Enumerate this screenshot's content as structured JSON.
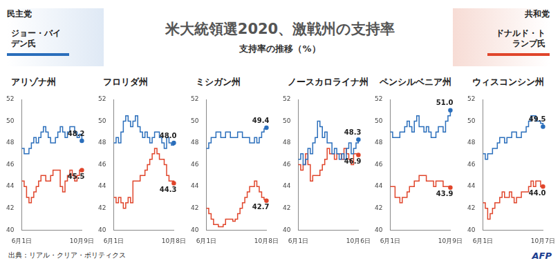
{
  "title": "米大統領選2020、激戦州の支持率",
  "subtitle": "支持率の推移（%）",
  "candidates": [
    {
      "party": "民主党",
      "name": "ジョー・バイデン氏",
      "color": "#2a6ebb"
    },
    {
      "party": "共和党",
      "name": "ドナルド・トランプ氏",
      "color": "#e0452b"
    }
  ],
  "source": "出典：リアル・クリア・ポリティクス",
  "credit": "AFP",
  "chart_data": [
    {
      "type": "line",
      "title": "アリゾナ州",
      "ylim": [
        40,
        52
      ],
      "yticks": [
        40,
        42,
        44,
        46,
        48,
        50,
        52
      ],
      "grid": false,
      "line_style": "stepped",
      "categories": [
        "6月1日",
        null,
        null,
        null,
        null,
        null,
        null,
        null,
        null,
        null,
        null,
        null,
        null,
        null,
        null,
        null,
        null,
        null,
        null,
        null,
        null,
        null,
        null,
        null,
        null,
        "10月9日"
      ],
      "series": [
        {
          "name": "ジョー・バイデン氏",
          "color": "#2a6ebb",
          "values": [
            47.5,
            47,
            47,
            47.5,
            48,
            48.5,
            48,
            48.5,
            49,
            49.5,
            49,
            48.5,
            48,
            48,
            48.5,
            49,
            49.5,
            49,
            48.5,
            49,
            49.5,
            49.5,
            49,
            48.5,
            48.8,
            48.2
          ],
          "value_labels": [
            null,
            null,
            null,
            null,
            null,
            null,
            null,
            null,
            null,
            null,
            null,
            null,
            null,
            null,
            null,
            null,
            null,
            null,
            null,
            null,
            null,
            null,
            null,
            null,
            null,
            "48.2"
          ]
        },
        {
          "name": "ドナルド・トランプ氏",
          "color": "#e0452b",
          "values": [
            44.5,
            44,
            43,
            42.5,
            43,
            43.5,
            44,
            44.5,
            45,
            45,
            44.5,
            44.5,
            45,
            45.5,
            45.5,
            45.5,
            44,
            43.5,
            44.5,
            45,
            45.5,
            45,
            44.5,
            45,
            45.5,
            45.5
          ],
          "value_labels": [
            null,
            null,
            null,
            null,
            null,
            null,
            null,
            null,
            null,
            null,
            null,
            null,
            null,
            null,
            null,
            null,
            null,
            null,
            null,
            null,
            null,
            null,
            null,
            null,
            null,
            "45.5"
          ]
        }
      ]
    },
    {
      "type": "line",
      "title": "フロリダ州",
      "ylim": [
        40,
        52
      ],
      "yticks": [
        40,
        42,
        44,
        46,
        48,
        50,
        52
      ],
      "grid": false,
      "line_style": "stepped",
      "categories": [
        "6月1日",
        null,
        null,
        null,
        null,
        null,
        null,
        null,
        null,
        null,
        null,
        null,
        null,
        null,
        null,
        null,
        null,
        null,
        null,
        null,
        null,
        null,
        null,
        null,
        null,
        "10月8日"
      ],
      "series": [
        {
          "name": "ジョー・バイデン氏",
          "color": "#2a6ebb",
          "values": [
            48,
            48.5,
            48,
            49,
            50,
            50.5,
            50,
            49.5,
            50,
            50.5,
            49.5,
            49,
            48.5,
            49,
            48.5,
            48,
            48.5,
            49,
            49,
            48.5,
            48,
            47.5,
            48.5,
            48,
            47.8,
            48.0
          ],
          "value_labels": [
            null,
            null,
            null,
            null,
            null,
            null,
            null,
            null,
            null,
            null,
            null,
            null,
            null,
            null,
            null,
            null,
            null,
            null,
            null,
            null,
            null,
            null,
            null,
            null,
            null,
            "48.0"
          ]
        },
        {
          "name": "ドナルド・トランプ氏",
          "color": "#e0452b",
          "values": [
            43,
            42.5,
            43,
            42.5,
            42,
            42.5,
            43,
            42.5,
            44.5,
            44.5,
            44.5,
            45,
            45,
            45.5,
            46,
            46.5,
            47,
            47.5,
            47,
            46.5,
            46.5,
            46,
            45,
            44.5,
            44.5,
            44.3
          ],
          "value_labels": [
            null,
            null,
            null,
            null,
            null,
            null,
            null,
            null,
            null,
            null,
            null,
            null,
            null,
            null,
            null,
            null,
            null,
            null,
            null,
            null,
            null,
            null,
            null,
            null,
            null,
            "44.3"
          ]
        }
      ]
    },
    {
      "type": "line",
      "title": "ミシガン州",
      "ylim": [
        40,
        52
      ],
      "yticks": [
        40,
        42,
        44,
        46,
        48,
        50,
        52
      ],
      "grid": false,
      "line_style": "stepped",
      "categories": [
        "6月1日",
        null,
        null,
        null,
        null,
        null,
        null,
        null,
        null,
        null,
        null,
        null,
        null,
        null,
        null,
        null,
        null,
        null,
        null,
        null,
        null,
        null,
        null,
        null,
        null,
        "10月8日"
      ],
      "series": [
        {
          "name": "ジョー・バイデン氏",
          "color": "#2a6ebb",
          "values": [
            47.5,
            48,
            48.5,
            48.5,
            49,
            49,
            48.5,
            48.5,
            49,
            49,
            48.5,
            48.5,
            48.5,
            49,
            49,
            48.5,
            48.5,
            48.5,
            48,
            48,
            48.5,
            48,
            48.5,
            49,
            49.3,
            49.4
          ],
          "value_labels": [
            null,
            null,
            null,
            null,
            null,
            null,
            null,
            null,
            null,
            null,
            null,
            null,
            null,
            null,
            null,
            null,
            null,
            null,
            null,
            null,
            null,
            null,
            null,
            null,
            null,
            "49.4"
          ]
        },
        {
          "name": "ドナルド・トランプ氏",
          "color": "#e0452b",
          "values": [
            42,
            41.5,
            41,
            40.5,
            40.5,
            40.3,
            40.3,
            40.5,
            41,
            41,
            41,
            40.8,
            41,
            41.5,
            42,
            42.5,
            43,
            43.5,
            44,
            44,
            44.5,
            44,
            43.5,
            43,
            42.8,
            42.7
          ],
          "value_labels": [
            null,
            null,
            null,
            null,
            null,
            null,
            null,
            null,
            null,
            null,
            null,
            null,
            null,
            null,
            null,
            null,
            null,
            null,
            null,
            null,
            null,
            null,
            null,
            null,
            null,
            "42.7"
          ]
        }
      ]
    },
    {
      "type": "line",
      "title": "ノースカロライナ州",
      "ylim": [
        40,
        52
      ],
      "yticks": [
        40,
        42,
        44,
        46,
        48,
        50,
        52
      ],
      "grid": false,
      "line_style": "stepped",
      "categories": [
        "6月1日",
        null,
        null,
        null,
        null,
        null,
        null,
        null,
        null,
        null,
        null,
        null,
        null,
        null,
        null,
        null,
        null,
        null,
        null,
        null,
        null,
        null,
        null,
        null,
        null,
        "10月6日"
      ],
      "series": [
        {
          "name": "ジョー・バイデン氏",
          "color": "#2a6ebb",
          "values": [
            46.5,
            47,
            46,
            46.5,
            47.5,
            47,
            48,
            48.5,
            50,
            49.5,
            48.5,
            49,
            48,
            48,
            47,
            47.5,
            47,
            46.5,
            47,
            46.5,
            47.5,
            48,
            47,
            47.5,
            48,
            48.3
          ],
          "value_labels": [
            null,
            null,
            null,
            null,
            null,
            null,
            null,
            null,
            null,
            null,
            null,
            null,
            null,
            null,
            null,
            null,
            null,
            null,
            null,
            null,
            null,
            null,
            null,
            null,
            null,
            "48.3"
          ]
        },
        {
          "name": "ドナルド・トランプ氏",
          "color": "#e0452b",
          "values": [
            46,
            45.5,
            46,
            47,
            46,
            44.5,
            45,
            45,
            45,
            45.5,
            46,
            46.5,
            47.5,
            47,
            47,
            46.5,
            47,
            47,
            46.5,
            47.5,
            47,
            46.5,
            46,
            47,
            47,
            46.9
          ],
          "value_labels": [
            null,
            null,
            null,
            null,
            null,
            null,
            null,
            null,
            null,
            null,
            null,
            null,
            null,
            null,
            null,
            null,
            null,
            null,
            null,
            null,
            null,
            null,
            null,
            null,
            null,
            "46.9"
          ]
        }
      ]
    },
    {
      "type": "line",
      "title": "ペンシルベニア州",
      "ylim": [
        40,
        52
      ],
      "yticks": [
        40,
        42,
        44,
        46,
        48,
        50,
        52
      ],
      "grid": false,
      "line_style": "stepped",
      "categories": [
        "6月1日",
        null,
        null,
        null,
        null,
        null,
        null,
        null,
        null,
        null,
        null,
        null,
        null,
        null,
        null,
        null,
        null,
        null,
        null,
        null,
        null,
        null,
        null,
        null,
        null,
        "10月9日"
      ],
      "series": [
        {
          "name": "ジョー・バイデン氏",
          "color": "#2a6ebb",
          "values": [
            49,
            48.5,
            48.5,
            48.5,
            49,
            49,
            49.5,
            50,
            49.5,
            49,
            50,
            50.5,
            49.5,
            49.5,
            49,
            49.5,
            49,
            48.5,
            48.5,
            49,
            49.5,
            49.5,
            49,
            50,
            50.5,
            51.0
          ],
          "value_labels": [
            null,
            null,
            null,
            null,
            null,
            null,
            null,
            null,
            null,
            null,
            null,
            null,
            null,
            null,
            null,
            null,
            null,
            null,
            null,
            null,
            null,
            null,
            null,
            null,
            null,
            "51.0"
          ]
        },
        {
          "name": "ドナルド・トランプ氏",
          "color": "#e0452b",
          "values": [
            44,
            44,
            43,
            43,
            42.5,
            43,
            43,
            43.5,
            44,
            44,
            44.5,
            44.5,
            45,
            45,
            45,
            44.5,
            44.5,
            44.5,
            44,
            44.5,
            44.5,
            44.5,
            44,
            44,
            44,
            43.9
          ],
          "value_labels": [
            null,
            null,
            null,
            null,
            null,
            null,
            null,
            null,
            null,
            null,
            null,
            null,
            null,
            null,
            null,
            null,
            null,
            null,
            null,
            null,
            null,
            null,
            null,
            null,
            null,
            "43.9"
          ]
        }
      ]
    },
    {
      "type": "line",
      "title": "ウィスコンシン州",
      "ylim": [
        40,
        52
      ],
      "yticks": [
        40,
        42,
        44,
        46,
        48,
        50,
        52
      ],
      "grid": false,
      "line_style": "stepped",
      "categories": [
        "6月1日",
        null,
        null,
        null,
        null,
        null,
        null,
        null,
        null,
        null,
        null,
        null,
        null,
        null,
        null,
        null,
        null,
        null,
        null,
        null,
        null,
        null,
        null,
        null,
        null,
        "10月7日"
      ],
      "series": [
        {
          "name": "ジョー・バイデン氏",
          "color": "#2a6ebb",
          "values": [
            47,
            46.5,
            47,
            47,
            47.5,
            47.5,
            48,
            48.5,
            48.5,
            48,
            48.5,
            48.5,
            49,
            49,
            48.5,
            48.5,
            49,
            49,
            49.5,
            50,
            50.5,
            50.5,
            50,
            50,
            49.8,
            49.5
          ],
          "value_labels": [
            null,
            null,
            null,
            null,
            null,
            null,
            null,
            null,
            null,
            null,
            null,
            null,
            null,
            null,
            null,
            null,
            null,
            null,
            null,
            null,
            null,
            null,
            null,
            null,
            null,
            "49.5"
          ]
        },
        {
          "name": "ドナルド・トランプ氏",
          "color": "#e0452b",
          "values": [
            42.5,
            42,
            41,
            41.5,
            42,
            42.5,
            42.5,
            43,
            43.5,
            43,
            43,
            43.5,
            43,
            42.5,
            43,
            43,
            43.5,
            43.5,
            43.5,
            44,
            44.5,
            44,
            44.5,
            44.5,
            44,
            44.0
          ],
          "value_labels": [
            null,
            null,
            null,
            null,
            null,
            null,
            null,
            null,
            null,
            null,
            null,
            null,
            null,
            null,
            null,
            null,
            null,
            null,
            null,
            null,
            null,
            null,
            null,
            null,
            null,
            "44.0"
          ]
        }
      ]
    }
  ]
}
